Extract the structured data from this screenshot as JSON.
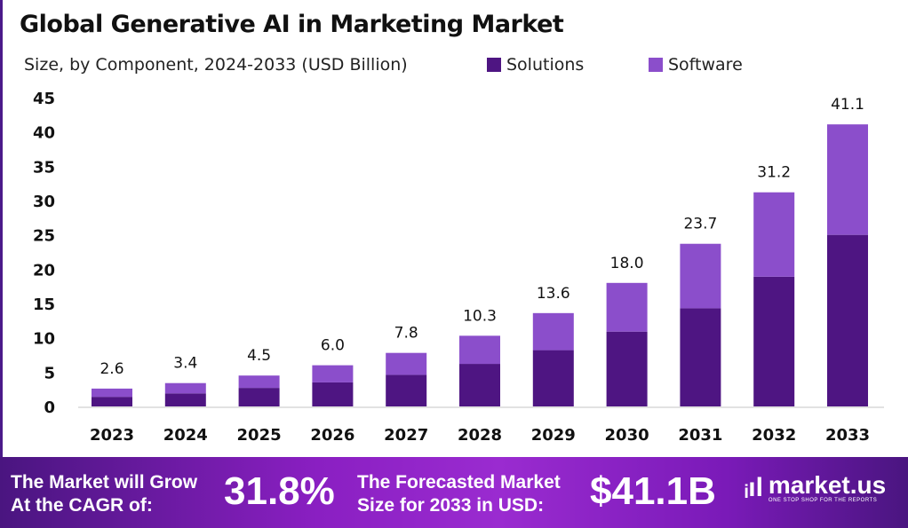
{
  "header": {
    "title": "Global Generative AI in Marketing Market",
    "subtitle": "Size, by Component, 2024-2033 (USD Billion)"
  },
  "colors": {
    "solutions": "#4e1582",
    "software": "#8b4ecb",
    "frame": "#4b1a8a"
  },
  "chart_data": {
    "type": "bar",
    "stacked": true,
    "title": "Global Generative AI in Marketing Market",
    "subtitle": "Size, by Component, 2024-2033 (USD Billion)",
    "xlabel": "",
    "ylabel": "",
    "ylim": [
      0,
      45
    ],
    "yticks": [
      0,
      5,
      10,
      15,
      20,
      25,
      30,
      35,
      40,
      45
    ],
    "grid": false,
    "legend": "top-right",
    "categories": [
      "2023",
      "2024",
      "2025",
      "2026",
      "2027",
      "2028",
      "2029",
      "2030",
      "2031",
      "2032",
      "2033"
    ],
    "series": [
      {
        "name": "Solutions",
        "values": [
          1.4,
          1.9,
          2.7,
          3.5,
          4.6,
          6.2,
          8.2,
          10.9,
          14.3,
          18.9,
          25.0
        ]
      },
      {
        "name": "Software",
        "values": [
          1.2,
          1.5,
          1.8,
          2.5,
          3.2,
          4.1,
          5.4,
          7.1,
          9.4,
          12.3,
          16.1
        ]
      }
    ],
    "totals": [
      "2.6",
      "3.4",
      "4.5",
      "6.0",
      "7.8",
      "10.3",
      "13.6",
      "18.0",
      "23.7",
      "31.2",
      "41.1"
    ]
  },
  "footer": {
    "cagr_label_1": "The Market will Grow",
    "cagr_label_2": "At the CAGR of:",
    "cagr_value": "31.8%",
    "forecast_label_1": "The Forecasted Market",
    "forecast_label_2": "Size for 2033 in USD:",
    "forecast_value": "$41.1B",
    "logo_name": "market.us",
    "logo_tagline": "ONE STOP SHOP FOR THE REPORTS"
  }
}
